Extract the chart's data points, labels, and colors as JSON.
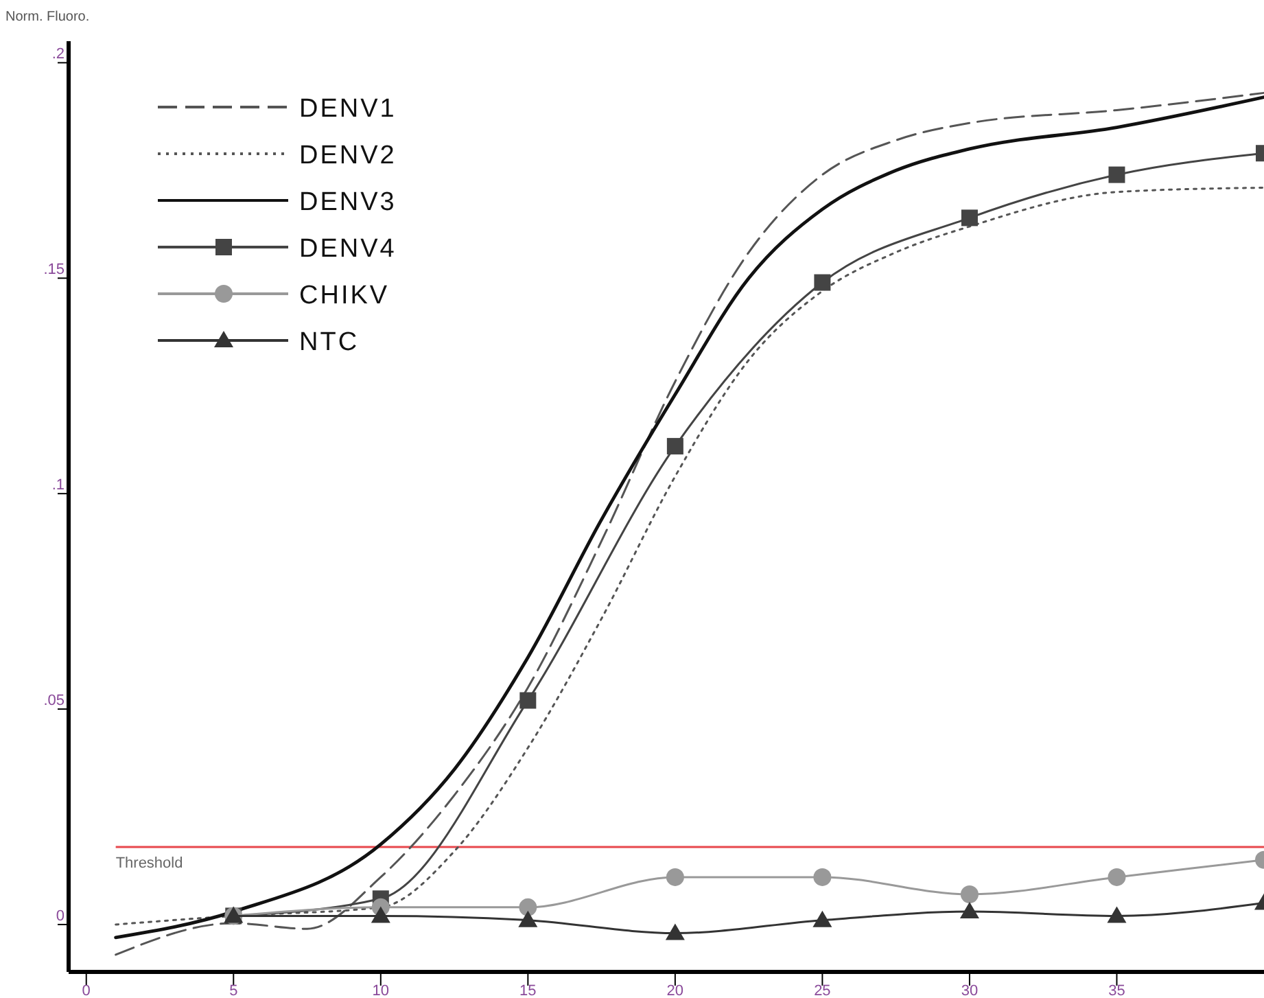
{
  "chart_data": {
    "type": "line",
    "ylabel": "Norm. Fluoro.",
    "xlim": [
      -0.6,
      40
    ],
    "xticks": [
      0,
      5,
      10,
      15,
      20,
      25,
      30,
      35
    ],
    "ylim": [
      -0.011,
      0.205
    ],
    "yticks": [
      {
        "value": 0,
        "label": "0"
      },
      {
        "value": 0.05,
        "label": ".05"
      },
      {
        "value": 0.1,
        "label": ".1"
      },
      {
        "value": 0.15,
        "label": ".15"
      },
      {
        "value": 0.2,
        "label": ".2"
      }
    ],
    "grid": false,
    "legend": "top left",
    "ref_lines": [
      {
        "axis": "y",
        "value": 0.018,
        "label": "Threshold",
        "color": "#e8474c"
      }
    ],
    "series": [
      {
        "name": "DENV1",
        "color": "#555555",
        "line_style": "dashed",
        "marker": "none",
        "x": [
          1,
          5,
          7.5,
          10,
          12.5,
          15,
          17.5,
          20,
          22.5,
          25,
          27.5,
          30,
          35,
          40
        ],
        "values": [
          -0.007,
          0.0003,
          -0.001,
          0.011,
          0.03,
          0.055,
          0.089,
          0.126,
          0.156,
          0.174,
          0.182,
          0.186,
          0.189,
          0.193
        ]
      },
      {
        "name": "DENV2",
        "color": "#555555",
        "line_style": "dotted",
        "marker": "none",
        "x": [
          1,
          5,
          10,
          12.5,
          15,
          17.5,
          20,
          22.5,
          25,
          27.5,
          30,
          35,
          40
        ],
        "values": [
          0,
          0.002,
          0.004,
          0.017,
          0.041,
          0.071,
          0.104,
          0.131,
          0.147,
          0.156,
          0.162,
          0.17,
          0.171
        ]
      },
      {
        "name": "DENV3",
        "color": "#111111",
        "line_style": "solid",
        "marker": "none",
        "x": [
          1,
          5,
          10,
          12.5,
          15,
          17.5,
          20,
          22.5,
          25,
          27.5,
          30,
          35,
          40
        ],
        "values": [
          -0.003,
          0.003,
          0.0186,
          0.036,
          0.062,
          0.094,
          0.123,
          0.15,
          0.166,
          0.175,
          0.18,
          0.185,
          0.192
        ]
      },
      {
        "name": "DENV4",
        "color": "#444444",
        "line_style": "solid",
        "marker": "square",
        "x": [
          5,
          10,
          15,
          20,
          25,
          30,
          35,
          40
        ],
        "values": [
          0.002,
          0.006,
          0.052,
          0.111,
          0.149,
          0.164,
          0.174,
          0.179
        ]
      },
      {
        "name": "CHIKV",
        "color": "#999999",
        "line_style": "solid",
        "marker": "circle",
        "x": [
          5,
          10,
          15,
          20,
          25,
          30,
          35,
          40
        ],
        "values": [
          0.002,
          0.004,
          0.004,
          0.011,
          0.011,
          0.007,
          0.011,
          0.015
        ]
      },
      {
        "name": "NTC",
        "color": "#333333",
        "line_style": "solid",
        "marker": "triangle",
        "x": [
          5,
          10,
          15,
          20,
          25,
          30,
          35,
          40
        ],
        "values": [
          0.002,
          0.002,
          0.001,
          -0.002,
          0.001,
          0.003,
          0.002,
          0.005
        ]
      }
    ]
  }
}
